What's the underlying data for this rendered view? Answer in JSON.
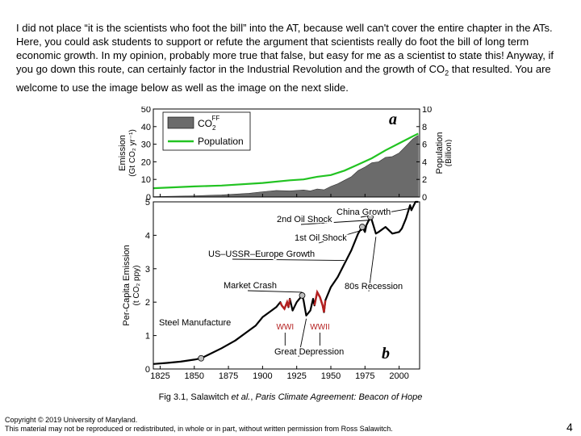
{
  "slide": {
    "intro_text": "I did not place “it is the scientists who foot the bill” into the AT, because well can't cover the entire chapter in the ATs.  Here, you could ask students to support or refute the argument that scientists really do foot the bill of long term economic growth.  In my opinion, probably more true that false, but easy for me as a scientist to state this!  Anyway, if you go down this route, can certainly factor in the Industrial Revolution and the growth of CO",
    "intro_sub": "2",
    "intro_tail": " that resulted.  You are welcome to use the image below as well as the image on the next slide.",
    "caption_pre": "Fig 3.1, Salawitch ",
    "caption_etal": "et al.",
    "caption_mid": ", ",
    "caption_book": "Paris Climate Agreement: Beacon of Hope",
    "copyright": "Copyright © 2019 University of Maryland.",
    "rights": "This material may not be reproduced or redistributed, in whole or in part, without written permission from Ross Salawitch.",
    "page_number": "4"
  },
  "chart_data": [
    {
      "type": "area",
      "panel_letter": "a",
      "xlim": [
        1820,
        2015
      ],
      "ylabel_left": "Emission",
      "ylabel_left_units": "(Gt CO₂ yr⁻¹)",
      "ylim_left": [
        0,
        50
      ],
      "yticks_left": [
        "0",
        "10",
        "20",
        "30",
        "40",
        "50"
      ],
      "ylabel_right": "Population",
      "ylabel_right_units": "(Billion)",
      "ylim_right": [
        0,
        10
      ],
      "yticks_right": [
        "0",
        "2",
        "4",
        "6",
        "8",
        "10"
      ],
      "legend": {
        "placement": "top-left",
        "co2_label": "CO",
        "co2_sub": "2",
        "co2_sup": "FF",
        "pop_label": "Population"
      },
      "colors": {
        "co2": "#6b6b6b",
        "population": "#22c322"
      },
      "series": [
        {
          "name": "CO2 FF",
          "axis": "left",
          "x": [
            1820,
            1850,
            1870,
            1890,
            1900,
            1910,
            1920,
            1930,
            1935,
            1940,
            1945,
            1950,
            1955,
            1960,
            1965,
            1970,
            1975,
            1980,
            1985,
            1990,
            1995,
            2000,
            2005,
            2010,
            2014
          ],
          "y": [
            0.2,
            0.7,
            1.2,
            2.1,
            3,
            3.7,
            3.5,
            4,
            3.5,
            4.6,
            4.1,
            6,
            7.5,
            9.5,
            11.5,
            15,
            17,
            19.5,
            20,
            22.5,
            23,
            25,
            29,
            33,
            35
          ]
        },
        {
          "name": "Population",
          "axis": "right",
          "x": [
            1820,
            1850,
            1870,
            1900,
            1920,
            1930,
            1940,
            1950,
            1960,
            1970,
            1980,
            1990,
            2000,
            2010,
            2014
          ],
          "y": [
            1,
            1.2,
            1.3,
            1.6,
            1.9,
            2,
            2.3,
            2.5,
            3,
            3.7,
            4.4,
            5.3,
            6.1,
            6.9,
            7.2
          ]
        }
      ]
    },
    {
      "type": "line",
      "panel_letter": "b",
      "xlim": [
        1820,
        2015
      ],
      "xticks": [
        "1825",
        "1850",
        "1875",
        "1900",
        "1925",
        "1950",
        "1975",
        "2000"
      ],
      "ylabel": "Per-Capita Emission",
      "ylabel_units": "(t CO₂ ppy)",
      "ylim": [
        0,
        5
      ],
      "yticks": [
        "0",
        "1",
        "2",
        "3",
        "4",
        "5"
      ],
      "colors": {
        "line": "#000000",
        "war": "#b52020"
      },
      "series": [
        {
          "name": "Per-capita emission",
          "x": [
            1820,
            1830,
            1840,
            1850,
            1855,
            1860,
            1870,
            1880,
            1890,
            1895,
            1900,
            1905,
            1910,
            1913,
            1914,
            1916,
            1918,
            1919,
            1920,
            1922,
            1925,
            1929,
            1930,
            1932,
            1935,
            1937,
            1938,
            1940,
            1942,
            1944,
            1945,
            1946,
            1948,
            1950,
            1955,
            1960,
            1965,
            1970,
            1973,
            1975,
            1976,
            1979,
            1980,
            1983,
            1985,
            1990,
            1995,
            2000,
            2002,
            2005,
            2008,
            2009,
            2012,
            2014
          ],
          "y": [
            0.15,
            0.18,
            0.22,
            0.28,
            0.32,
            0.42,
            0.62,
            0.85,
            1.15,
            1.3,
            1.55,
            1.7,
            1.85,
            2.0,
            1.9,
            1.8,
            2.0,
            1.85,
            2.1,
            1.75,
            2.0,
            2.2,
            2.05,
            1.6,
            1.75,
            2.1,
            1.9,
            2.3,
            2.15,
            1.9,
            1.7,
            2.05,
            2.25,
            2.45,
            2.75,
            3.15,
            3.55,
            4.05,
            4.25,
            4.1,
            4.3,
            4.55,
            4.45,
            4.05,
            4.1,
            4.25,
            4.05,
            4.1,
            4.2,
            4.5,
            4.9,
            4.75,
            5.0,
            5.0
          ]
        }
      ],
      "highlights": [
        {
          "label": "WWI",
          "x_range": [
            1913,
            1920
          ]
        },
        {
          "label": "WWII",
          "x_range": [
            1938,
            1946
          ]
        }
      ],
      "annotations": [
        {
          "text": "Steel Manufacture",
          "x": 1855,
          "y": 0.32
        },
        {
          "text": "Great Depression",
          "x": 1932,
          "y": 1.6
        },
        {
          "text": "Market Crash",
          "x": 1929,
          "y": 2.2
        },
        {
          "text": "US–USSR–Europe Growth",
          "x": 1960,
          "y": 3.15
        },
        {
          "text": "80s Recession",
          "x": 1983,
          "y": 4.05
        },
        {
          "text": "1st Oil Shock",
          "x": 1973,
          "y": 4.25
        },
        {
          "text": "2nd Oil Shock",
          "x": 1979,
          "y": 4.55
        },
        {
          "text": "China Growth",
          "x": 2008,
          "y": 4.9
        }
      ]
    }
  ]
}
